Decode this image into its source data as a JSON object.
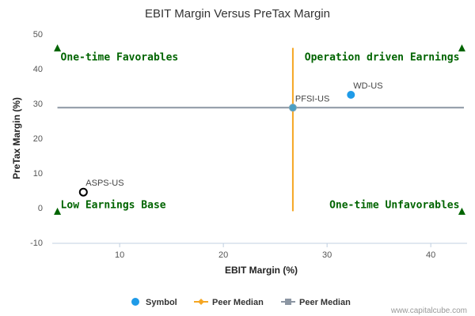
{
  "chart_data": {
    "type": "scatter",
    "title": "EBIT Margin Versus PreTax Margin",
    "xlabel": "EBIT Margin (%)",
    "ylabel": "PreTax Margin (%)",
    "xlim": [
      3.5,
      43.5
    ],
    "ylim": [
      -10,
      50
    ],
    "xticks": [
      10,
      20,
      30,
      40
    ],
    "yticks": [
      -10,
      0,
      10,
      20,
      30,
      40,
      50
    ],
    "grid": false,
    "points": [
      {
        "label": "WD-US",
        "x": 32.3,
        "y": 32.5,
        "style": "symbol"
      },
      {
        "label": "PFSI-US",
        "x": 26.7,
        "y": 28.8,
        "style": "peer"
      },
      {
        "label": "ASPS-US",
        "x": 6.5,
        "y": 4.5,
        "style": "open"
      }
    ],
    "peer_median_x": 26.7,
    "peer_median_y": 28.8,
    "quadrants": {
      "top_left": "One-time Favorables",
      "top_right": "Operation driven Earnings",
      "bottom_left": "Low Earnings Base",
      "bottom_right": "One-time Unfavorables"
    },
    "legend": [
      {
        "label": "Symbol",
        "color": "#1f9be8"
      },
      {
        "label": "Peer Median",
        "color": "#f5a623"
      },
      {
        "label": "Peer Median",
        "color": "#8c96a3"
      }
    ],
    "legend_position": "bottom",
    "colors": {
      "symbol": "#1f9be8",
      "vline": "#f5a623",
      "hline": "#8c96a3",
      "marker": "#006400",
      "quadrant_text": "#006400"
    }
  },
  "credit": "www.capitalcube.com"
}
